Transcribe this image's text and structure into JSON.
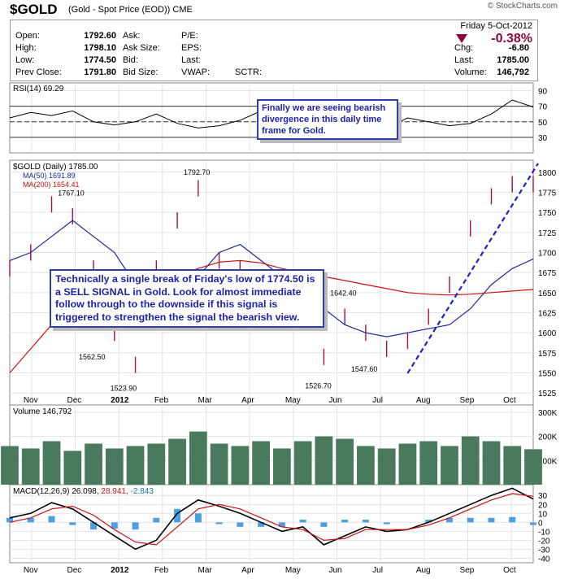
{
  "header": {
    "symbol": "$GOLD",
    "description": "(Gold - Spot Price (EOD))",
    "exchange": "CME",
    "watermark": "© StockCharts.com"
  },
  "quote": {
    "date": "Friday  5-Oct-2012",
    "change_pct": "-0.38%",
    "fields": [
      {
        "label": "Open:",
        "value": "1792.60"
      },
      {
        "label": "High:",
        "value": "1798.10"
      },
      {
        "label": "Low:",
        "value": "1774.50"
      },
      {
        "label": "Prev Close:",
        "value": "1791.80"
      }
    ],
    "mid_labels": [
      "Ask:",
      "Ask Size:",
      "Bid:",
      "Bid Size:"
    ],
    "ratio_labels": [
      "P/E:",
      "EPS:",
      "Last:",
      "VWAP:"
    ],
    "sctr_label": "SCTR:",
    "right_fields": [
      {
        "label": "Chg:",
        "value": "-6.80"
      },
      {
        "label": "Last:",
        "value": "1785.00"
      },
      {
        "label": "Volume:",
        "value": "146,792"
      }
    ],
    "down_color": "#8b0a3c"
  },
  "annotations": {
    "rsi_note": "Finally we are seeing bearish divergence in this daily time frame for Gold.",
    "price_note": "Technically a single break of Friday's low of 1774.50 is a SELL SIGNAL in Gold. Look for almost immediate follow through to the downside if this signal is triggered to strengthen the signal the bearish view."
  },
  "chart_data": [
    {
      "type": "line",
      "panel": "rsi",
      "legend": "RSI(14) 69.29",
      "y_ticks": [
        30,
        50,
        70,
        90
      ],
      "ref_lines": [
        30,
        50,
        70
      ],
      "ylim": [
        10,
        100
      ],
      "x": [
        0,
        10,
        20,
        30,
        40,
        50,
        60,
        70,
        80,
        90,
        100,
        110,
        120,
        130,
        140,
        150,
        160,
        170,
        180,
        190,
        200,
        210,
        220,
        230,
        240,
        250
      ],
      "values": [
        55,
        62,
        58,
        64,
        50,
        46,
        50,
        60,
        48,
        42,
        45,
        52,
        64,
        62,
        55,
        52,
        35,
        30,
        42,
        55,
        50,
        45,
        48,
        60,
        78,
        69
      ]
    },
    {
      "type": "bar",
      "panel": "price",
      "legend": "$GOLD (Daily) 1785.00",
      "ma_labels": [
        "MA(50) 1691.89",
        "MA(200) 1654.41"
      ],
      "ma_colors": [
        "#1a2a9a",
        "#cc1111"
      ],
      "bar_color": "#a8104a",
      "y_ticks": [
        1525,
        1550,
        1575,
        1600,
        1625,
        1650,
        1675,
        1700,
        1725,
        1750,
        1775,
        1800
      ],
      "ylim": [
        1510,
        1815
      ],
      "x_ticks": [
        "Nov",
        "Dec",
        "2012",
        "Feb",
        "Mar",
        "Apr",
        "May",
        "Jun",
        "Jul",
        "Aug",
        "Sep",
        "Oct"
      ],
      "labels": [
        {
          "text": "1792.70",
          "x": 90,
          "y": 1792.7
        },
        {
          "text": "1767.10",
          "x": 30,
          "y": 1767.1
        },
        {
          "text": "1642.40",
          "x": 160,
          "y": 1642.4
        },
        {
          "text": "1562.50",
          "x": 40,
          "y": 1562.5
        },
        {
          "text": "1523.90",
          "x": 55,
          "y": 1523.9
        },
        {
          "text": "1526.70",
          "x": 148,
          "y": 1526.7
        },
        {
          "text": "1547.60",
          "x": 170,
          "y": 1547.6
        }
      ],
      "x": [
        0,
        10,
        20,
        30,
        40,
        50,
        60,
        70,
        80,
        90,
        100,
        110,
        120,
        130,
        140,
        150,
        160,
        170,
        180,
        190,
        200,
        210,
        220,
        230,
        240,
        250
      ],
      "values": [
        1680,
        1700,
        1760,
        1745,
        1680,
        1600,
        1560,
        1680,
        1740,
        1780,
        1690,
        1680,
        1650,
        1640,
        1660,
        1570,
        1620,
        1600,
        1580,
        1590,
        1620,
        1660,
        1730,
        1770,
        1785,
        1785
      ],
      "ma50": [
        1690,
        1700,
        1720,
        1740,
        1720,
        1700,
        1660,
        1640,
        1650,
        1670,
        1700,
        1710,
        1690,
        1670,
        1650,
        1630,
        1610,
        1600,
        1595,
        1600,
        1605,
        1610,
        1630,
        1660,
        1680,
        1692
      ],
      "ma200": [
        1550,
        1580,
        1610,
        1640,
        1650,
        1660,
        1665,
        1668,
        1672,
        1680,
        1688,
        1690,
        1687,
        1680,
        1675,
        1670,
        1665,
        1660,
        1655,
        1650,
        1648,
        1647,
        1648,
        1650,
        1652,
        1654
      ]
    },
    {
      "type": "bar",
      "panel": "volume",
      "legend": "Volume 146,792",
      "y_ticks": [
        "100K",
        "200K",
        "300K"
      ],
      "ylim": [
        0,
        330000
      ],
      "x": [
        0,
        10,
        20,
        30,
        40,
        50,
        60,
        70,
        80,
        90,
        100,
        110,
        120,
        130,
        140,
        150,
        160,
        170,
        180,
        190,
        200,
        210,
        220,
        230,
        240,
        250
      ],
      "values": [
        160000,
        150000,
        180000,
        140000,
        170000,
        150000,
        160000,
        170000,
        190000,
        220000,
        170000,
        160000,
        180000,
        150000,
        180000,
        200000,
        190000,
        160000,
        150000,
        170000,
        180000,
        160000,
        200000,
        180000,
        160000,
        146792
      ]
    },
    {
      "type": "line",
      "panel": "macd",
      "legend_parts": [
        "MACD(12,26,9) 26.098,",
        "28.941,",
        "-2.843"
      ],
      "y_ticks": [
        -40,
        -30,
        -20,
        -10,
        0,
        10,
        20,
        30
      ],
      "ylim": [
        -45,
        42
      ],
      "series": [
        {
          "name": "MACD(12,26,9)",
          "values": [
            5,
            10,
            22,
            15,
            0,
            -15,
            -30,
            -20,
            10,
            25,
            18,
            10,
            0,
            -10,
            -5,
            -25,
            -15,
            -5,
            -10,
            -8,
            0,
            10,
            20,
            30,
            38,
            26
          ]
        },
        {
          "name": "Signal",
          "values": [
            0,
            5,
            15,
            18,
            8,
            -8,
            -22,
            -25,
            -5,
            15,
            20,
            15,
            5,
            -5,
            -8,
            -20,
            -18,
            -8,
            -8,
            -8,
            -3,
            5,
            15,
            25,
            32,
            29
          ]
        }
      ],
      "x": [
        0,
        10,
        20,
        30,
        40,
        50,
        60,
        70,
        80,
        90,
        100,
        110,
        120,
        130,
        140,
        150,
        160,
        170,
        180,
        190,
        200,
        210,
        220,
        230,
        240,
        250
      ]
    }
  ]
}
